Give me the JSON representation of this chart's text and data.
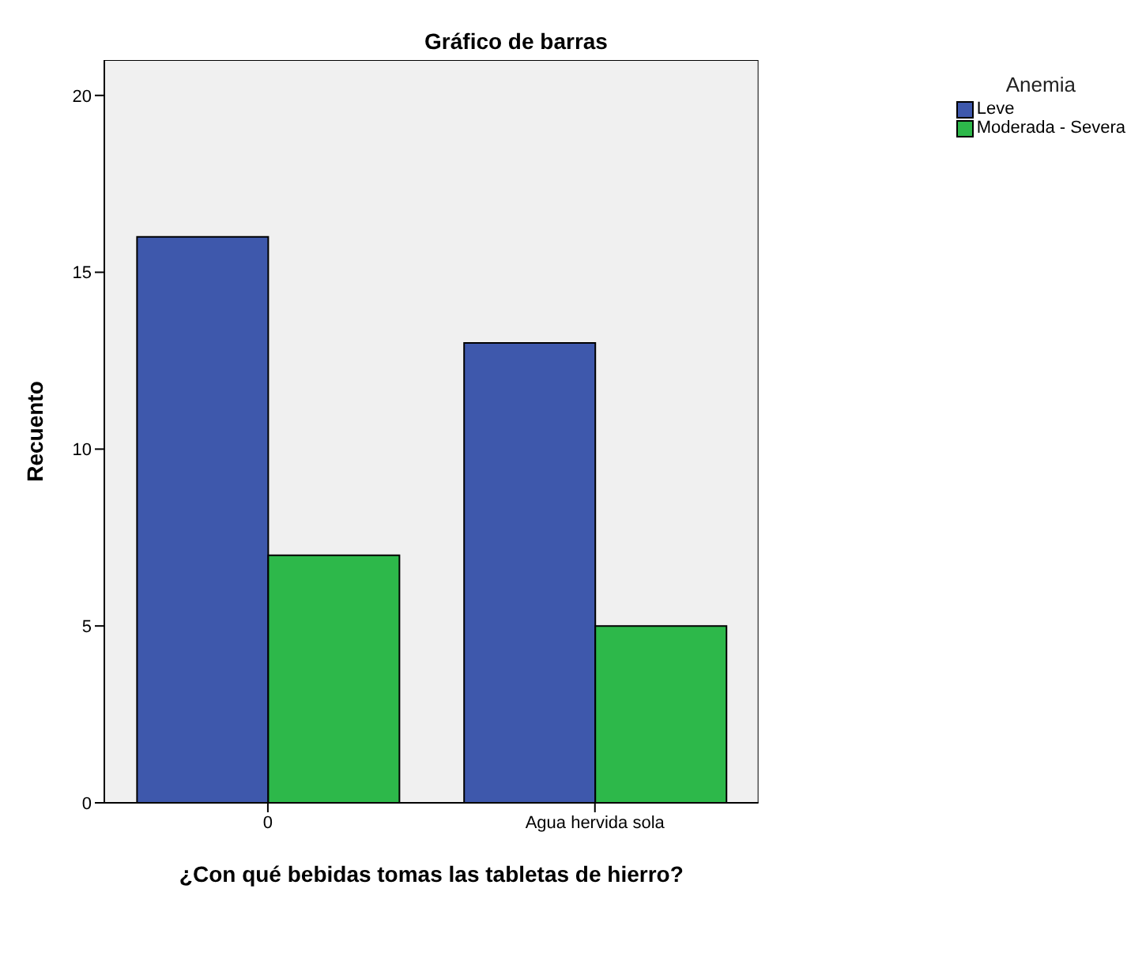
{
  "chart_data": {
    "type": "bar",
    "title": "Gráfico de barras",
    "xlabel": "¿Con qué bebidas tomas las tabletas de hierro?",
    "ylabel": "Recuento",
    "legend_title": "Anemia",
    "categories": [
      "0",
      "Agua hervida sola"
    ],
    "series": [
      {
        "name": "Leve",
        "color": "#3e58ac",
        "values": [
          16,
          13
        ]
      },
      {
        "name": "Moderada - Severa",
        "color": "#2db84a",
        "values": [
          7,
          5
        ]
      }
    ],
    "ylim": [
      0,
      21
    ],
    "yticks": [
      0,
      5,
      10,
      15,
      20
    ],
    "legend": "top right"
  }
}
